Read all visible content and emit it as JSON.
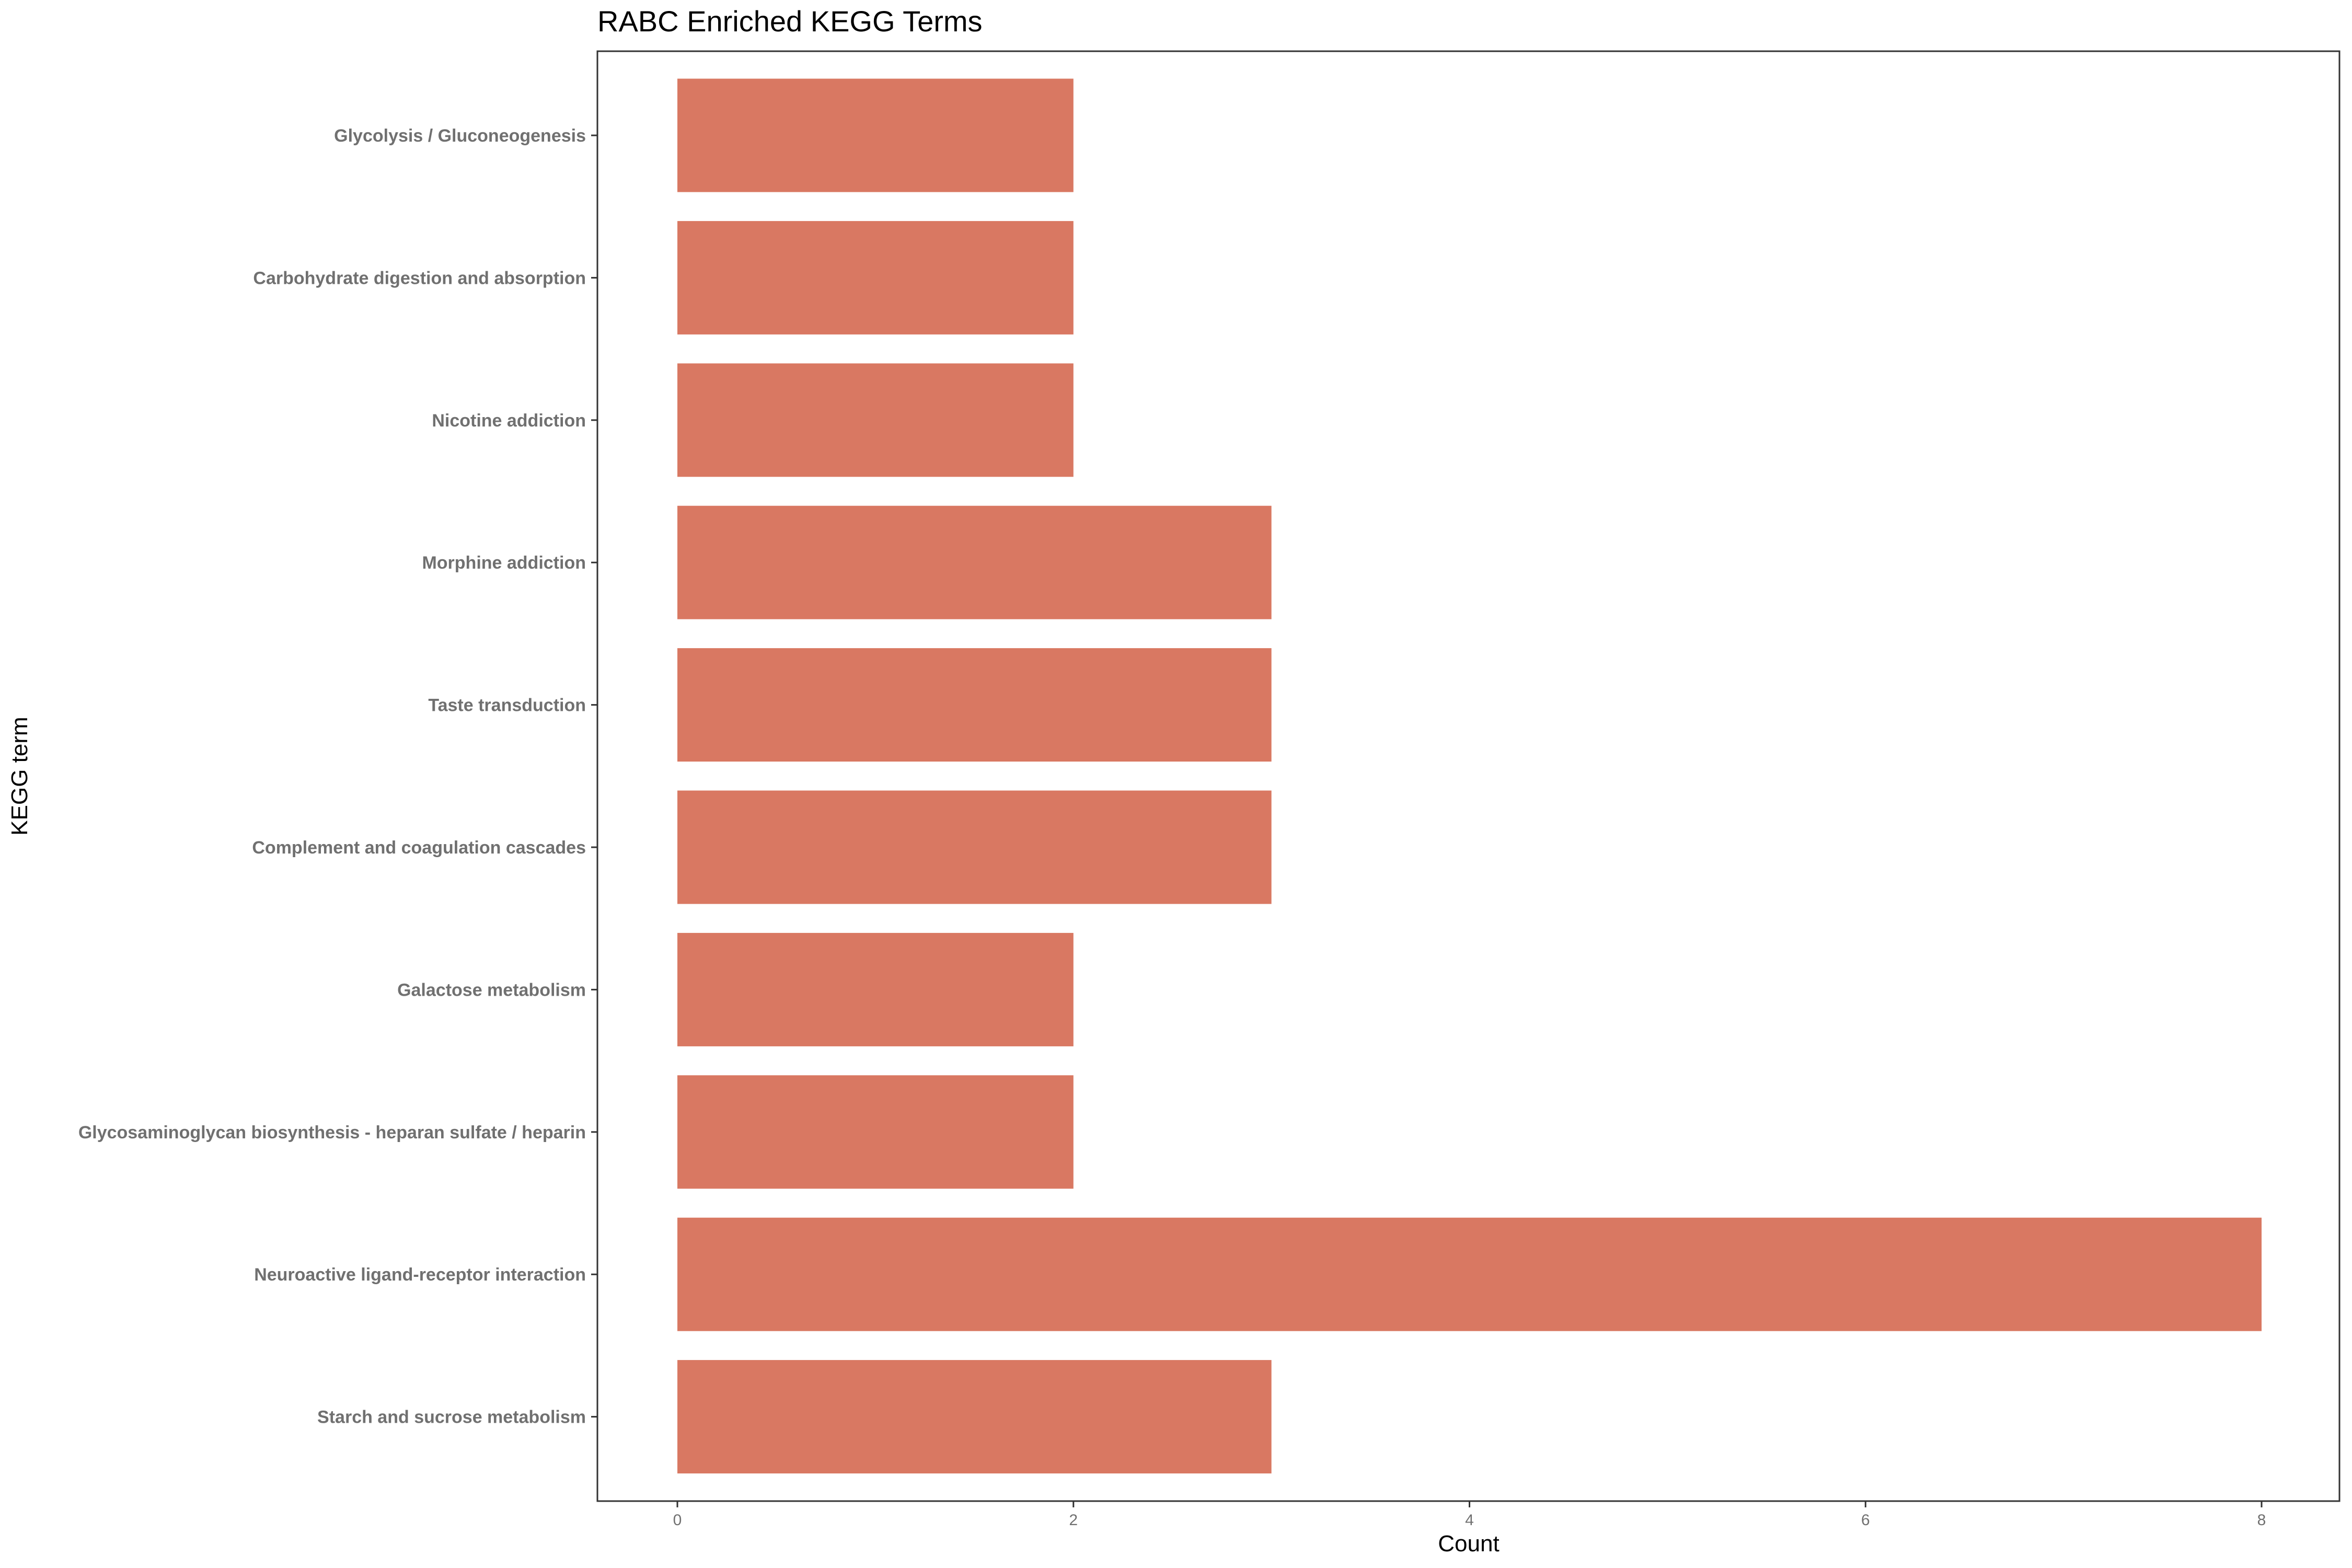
{
  "chart_data": {
    "type": "bar",
    "orientation": "horizontal",
    "title": "RABC Enriched KEGG Terms",
    "xlabel": "Count",
    "ylabel": "KEGG term",
    "categories": [
      "Glycolysis / Gluconeogenesis",
      "Carbohydrate digestion and absorption",
      "Nicotine addiction",
      "Morphine addiction",
      "Taste transduction",
      "Complement and coagulation cascades",
      "Galactose metabolism",
      "Glycosaminoglycan biosynthesis - heparan sulfate / heparin",
      "Neuroactive ligand-receptor interaction",
      "Starch and sucrose metabolism"
    ],
    "values": [
      2,
      2,
      2,
      3,
      3,
      3,
      2,
      2,
      8,
      3
    ],
    "xlim": [
      -0.4,
      8.4
    ],
    "xticks": [
      0,
      2,
      4,
      6,
      8
    ],
    "grid": false,
    "bar_color": "#D97862"
  }
}
